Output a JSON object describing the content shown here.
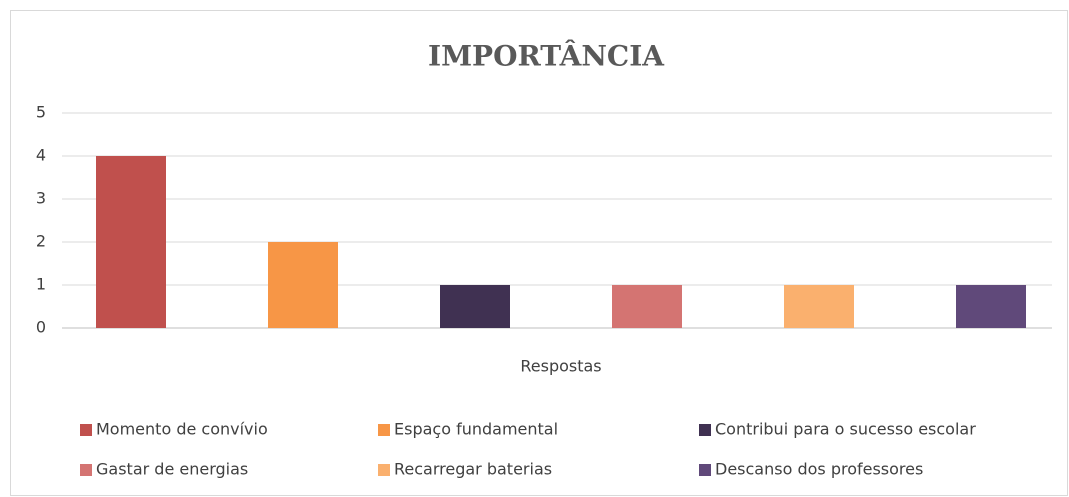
{
  "chart_data": {
    "type": "bar",
    "title": "IMPORTÂNCIA",
    "categories": [
      "Respostas"
    ],
    "series": [
      {
        "name": "Momento de convívio",
        "color": "#c0504d",
        "values": [
          4
        ]
      },
      {
        "name": "Espaço fundamental",
        "color": "#f79646",
        "values": [
          2
        ]
      },
      {
        "name": "Contribui para o sucesso escolar",
        "color": "#403152",
        "values": [
          1
        ]
      },
      {
        "name": "Gastar de energias",
        "color": "#d47472",
        "values": [
          1
        ]
      },
      {
        "name": "Recarregar baterias",
        "color": "#fab06e",
        "values": [
          1
        ]
      },
      {
        "name": "Descanso dos professores",
        "color": "#60497a",
        "values": [
          1
        ]
      }
    ],
    "ylim": [
      0,
      5
    ],
    "yticks": [
      0,
      1,
      2,
      3,
      4,
      5
    ],
    "grid": true,
    "legend": "bottom"
  }
}
